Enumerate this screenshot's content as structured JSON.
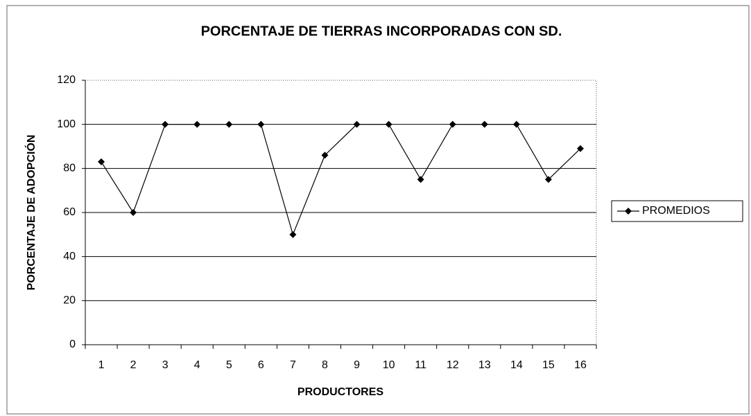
{
  "chart_data": {
    "type": "line",
    "title": "PORCENTAJE DE TIERRAS INCORPORADAS CON SD.",
    "x_label": "PRODUCTORES",
    "y_label": "PORCENTAJE DE ADOPCIÓN",
    "categories": [
      "1",
      "2",
      "3",
      "4",
      "5",
      "6",
      "7",
      "8",
      "9",
      "10",
      "11",
      "12",
      "13",
      "14",
      "15",
      "16"
    ],
    "series": [
      {
        "name": "PROMEDIOS",
        "color": "#000000",
        "values": [
          83,
          60,
          100,
          100,
          100,
          100,
          50,
          86,
          100,
          100,
          75,
          100,
          100,
          100,
          75,
          89
        ]
      }
    ],
    "ylim": [
      0,
      120
    ],
    "yticks": [
      0,
      20,
      40,
      60,
      80,
      100,
      120
    ],
    "grid": true,
    "legend": "right"
  }
}
